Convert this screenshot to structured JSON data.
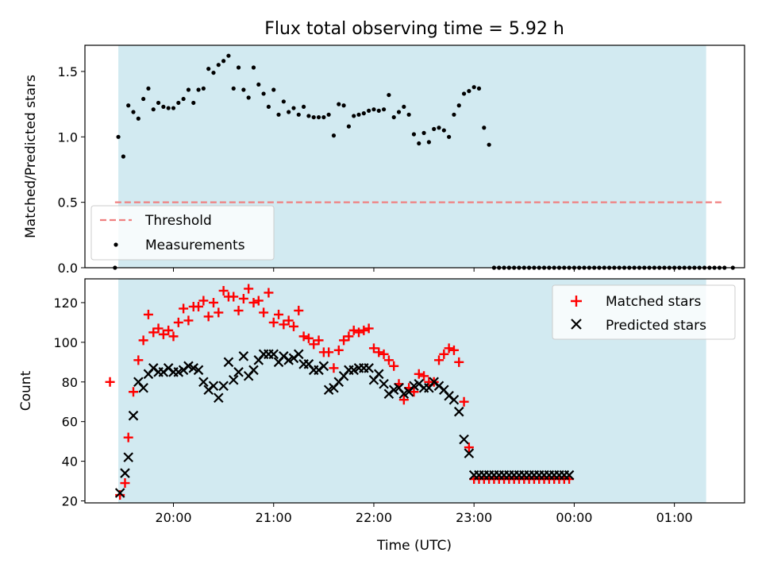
{
  "chart_data": [
    {
      "type": "scatter",
      "title": "Flux total observing time = 5.92 h",
      "ylabel": "Matched/Predicted stars",
      "xlabel": "",
      "xlim": [
        "19:07",
        "01:42"
      ],
      "ylim": [
        0,
        1.7
      ],
      "yticks": [
        0.0,
        0.5,
        1.0,
        1.5
      ],
      "ytick_labels": [
        "0.0",
        "0.5",
        "1.0",
        "1.5"
      ],
      "x_unit": "minutes after 19:00 UTC",
      "shaded_span": {
        "start": "19:27",
        "end": "01:19",
        "color": "#add8e6"
      },
      "legend_location": "lower left",
      "threshold": {
        "name": "Threshold",
        "value": 0.5,
        "x_start": "19:25",
        "x_end": "01:29",
        "color": "#f08080",
        "style": "dashed"
      },
      "series": [
        {
          "name": "Measurements",
          "color": "#000000",
          "x": [
            25,
            27,
            30,
            33,
            36,
            39,
            42,
            45,
            48,
            51,
            54,
            57,
            60,
            63,
            66,
            69,
            72,
            75,
            78,
            81,
            84,
            87,
            90,
            93,
            96,
            99,
            102,
            105,
            108,
            111,
            114,
            117,
            120,
            123,
            126,
            129,
            132,
            135,
            138,
            141,
            144,
            147,
            150,
            153,
            156,
            159,
            162,
            165,
            168,
            171,
            174,
            177,
            180,
            183,
            186,
            189,
            192,
            195,
            198,
            201,
            204,
            207,
            210,
            213,
            216,
            219,
            222,
            225,
            228,
            231,
            234,
            237,
            240,
            243,
            246,
            249,
            252,
            255,
            258,
            261,
            264,
            267,
            270,
            273,
            276,
            279,
            282,
            285,
            288,
            291,
            294,
            297,
            300,
            303,
            306,
            309,
            312,
            315,
            318,
            321,
            324,
            327,
            330,
            333,
            336,
            339,
            342,
            345,
            348,
            351,
            354,
            357,
            360,
            363,
            366,
            369,
            372,
            375,
            378,
            381,
            384,
            387,
            390
          ],
          "y": [
            0.0,
            1.0,
            0.85,
            1.24,
            1.19,
            1.14,
            1.29,
            1.37,
            1.21,
            1.26,
            1.23,
            1.22,
            1.22,
            1.26,
            1.29,
            1.36,
            1.26,
            1.36,
            1.37,
            1.52,
            1.49,
            1.55,
            1.58,
            1.62,
            1.37,
            1.53,
            1.36,
            1.3,
            1.53,
            1.4,
            1.33,
            1.23,
            1.36,
            1.17,
            1.27,
            1.19,
            1.22,
            1.17,
            1.23,
            1.16,
            1.15,
            1.15,
            1.15,
            1.17,
            1.01,
            1.25,
            1.24,
            1.08,
            1.16,
            1.17,
            1.18,
            1.2,
            1.21,
            1.2,
            1.21,
            1.32,
            1.15,
            1.19,
            1.23,
            1.17,
            1.02,
            0.95,
            1.03,
            0.96,
            1.06,
            1.07,
            1.05,
            1.0,
            1.17,
            1.24,
            1.33,
            1.35,
            1.38,
            1.37,
            1.07,
            0.94,
            0.0,
            0.0,
            0.0,
            0.0,
            0.0,
            0.0,
            0.0,
            0.0,
            0.0,
            0.0,
            0.0,
            0.0,
            0.0,
            0.0,
            0.0,
            0.0,
            0.0,
            0.0,
            0.0,
            0.0,
            0.0,
            0.0,
            0.0,
            0.0,
            0.0,
            0.0,
            0.0,
            0.0,
            0.0,
            0.0,
            0.0,
            0.0,
            0.0,
            0.0,
            0.0,
            0.0,
            0.0,
            0.0,
            0.0,
            0.0,
            0.0,
            0.0,
            0.0,
            0.0,
            0.0,
            0.0,
            0.0
          ]
        }
      ]
    },
    {
      "type": "scatter",
      "title": "",
      "xlabel": "Time (UTC)",
      "ylabel": "Count",
      "xlim": [
        "19:07",
        "01:42"
      ],
      "ylim": [
        19,
        132
      ],
      "yticks": [
        20,
        40,
        60,
        80,
        100,
        120
      ],
      "ytick_labels": [
        "20",
        "40",
        "60",
        "80",
        "100",
        "120"
      ],
      "xticks": [
        "20:00",
        "21:00",
        "22:00",
        "23:00",
        "00:00",
        "01:00"
      ],
      "x_unit": "minutes after 19:00 UTC",
      "shaded_span": {
        "start": "19:27",
        "end": "01:19",
        "color": "#add8e6"
      },
      "legend_location": "upper right",
      "series": [
        {
          "name": "Matched stars",
          "marker": "+",
          "color": "#ff0000",
          "x": [
            22,
            28,
            31,
            33,
            36,
            39,
            42,
            45,
            48,
            51,
            54,
            57,
            60,
            63,
            66,
            69,
            72,
            75,
            78,
            81,
            84,
            87,
            90,
            93,
            96,
            99,
            102,
            105,
            108,
            111,
            114,
            117,
            120,
            123,
            126,
            129,
            132,
            135,
            138,
            141,
            144,
            147,
            150,
            153,
            156,
            159,
            162,
            165,
            168,
            171,
            174,
            177,
            180,
            183,
            186,
            189,
            192,
            195,
            198,
            201,
            204,
            207,
            210,
            213,
            216,
            219,
            222,
            225,
            228,
            231,
            234,
            237,
            240,
            243,
            246,
            249,
            252,
            255,
            258,
            261,
            264,
            267,
            270,
            273,
            276,
            279,
            282,
            285,
            288,
            291,
            294,
            297
          ],
          "y": [
            80,
            23,
            29,
            52,
            75,
            91,
            101,
            114,
            105,
            107,
            104,
            106,
            103,
            110,
            117,
            111,
            118,
            118,
            121,
            113,
            120,
            115,
            126,
            123,
            123,
            116,
            122,
            127,
            120,
            121,
            115,
            125,
            110,
            114,
            109,
            111,
            108,
            116,
            103,
            102,
            99,
            101,
            95,
            95,
            87,
            96,
            101,
            103,
            106,
            105,
            106,
            107,
            97,
            95,
            94,
            91,
            88,
            79,
            71,
            77,
            75,
            84,
            83,
            80,
            80,
            91,
            94,
            97,
            96,
            90,
            70,
            47,
            31,
            31,
            31,
            31,
            31,
            31,
            31,
            31,
            31,
            31,
            31,
            31,
            31,
            31,
            31,
            31,
            31,
            31,
            31,
            31
          ]
        },
        {
          "name": "Predicted stars",
          "marker": "x",
          "color": "#000000",
          "x": [
            28,
            31,
            33,
            36,
            39,
            42,
            45,
            48,
            51,
            54,
            57,
            60,
            63,
            66,
            69,
            72,
            75,
            78,
            81,
            84,
            87,
            90,
            93,
            96,
            99,
            102,
            105,
            108,
            111,
            114,
            117,
            120,
            123,
            126,
            129,
            132,
            135,
            138,
            141,
            144,
            147,
            150,
            153,
            156,
            159,
            162,
            165,
            168,
            171,
            174,
            177,
            180,
            183,
            186,
            189,
            192,
            195,
            198,
            201,
            204,
            207,
            210,
            213,
            216,
            219,
            222,
            225,
            228,
            231,
            234,
            237,
            240,
            243,
            246,
            249,
            252,
            255,
            258,
            261,
            264,
            267,
            270,
            273,
            276,
            279,
            282,
            285,
            288,
            291,
            294,
            297
          ],
          "y": [
            24,
            34,
            42,
            63,
            80,
            77,
            84,
            87,
            85,
            85,
            87,
            85,
            85,
            86,
            88,
            87,
            86,
            80,
            76,
            78,
            72,
            78,
            90,
            81,
            85,
            93,
            83,
            86,
            91,
            94,
            94,
            94,
            90,
            93,
            91,
            92,
            94,
            89,
            89,
            86,
            86,
            88,
            76,
            77,
            80,
            83,
            86,
            86,
            87,
            87,
            87,
            81,
            84,
            79,
            74,
            76,
            77,
            74,
            75,
            78,
            79,
            77,
            77,
            80,
            78,
            76,
            73,
            71,
            65,
            51,
            44,
            33,
            33,
            33,
            33,
            33,
            33,
            33,
            33,
            33,
            33,
            33,
            33,
            33,
            33,
            33,
            33,
            33,
            33,
            33,
            33
          ]
        }
      ]
    }
  ]
}
